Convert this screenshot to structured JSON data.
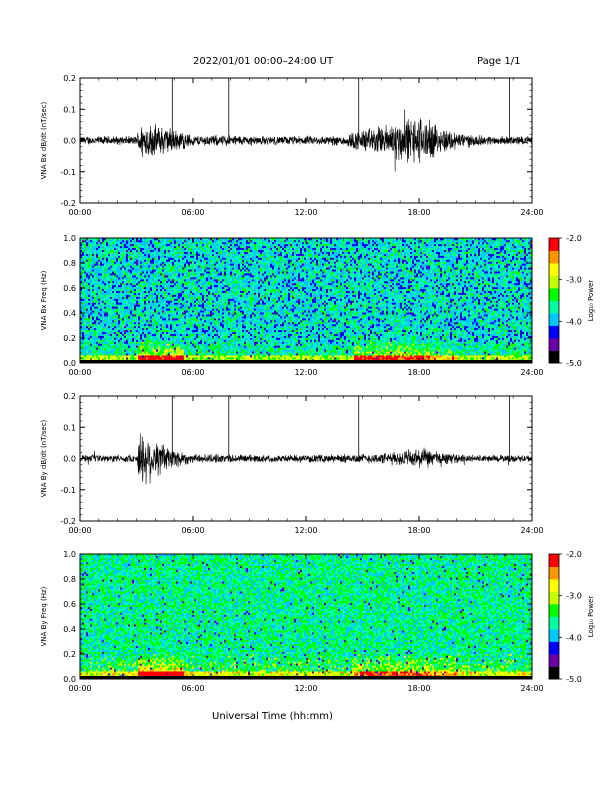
{
  "header": {
    "title": "2022/01/01  00:00–24:00 UT",
    "page_label": "Page 1/1"
  },
  "xaxis": {
    "label": "Universal Time (hh:mm)",
    "ticks": [
      "00:00",
      "06:00",
      "12:00",
      "18:00",
      "24:00"
    ]
  },
  "chart_data": [
    {
      "type": "line",
      "ylabel": "VNA Bx dB/dt (nT/sec)",
      "xlim": [
        0,
        24
      ],
      "ylim": [
        -0.2,
        0.2
      ],
      "yticks": [
        "0.2",
        "0.1",
        "0.0",
        "-0.1",
        "-0.2"
      ],
      "spike_times_h": [
        4.9,
        7.9,
        14.8,
        22.8
      ],
      "noise_envelope": {
        "x": [
          0,
          3,
          3.2,
          4.5,
          5.5,
          6,
          8,
          10,
          12,
          14,
          14.8,
          16,
          17,
          18,
          19,
          20,
          21,
          22,
          23,
          24
        ],
        "amplitude": [
          0.012,
          0.012,
          0.05,
          0.04,
          0.025,
          0.015,
          0.015,
          0.012,
          0.012,
          0.015,
          0.03,
          0.04,
          0.06,
          0.07,
          0.04,
          0.025,
          0.015,
          0.012,
          0.012,
          0.012
        ]
      }
    },
    {
      "type": "heatmap",
      "ylabel": "VNA Bx Freq (Hz)",
      "colorbar_label": "Log₁₀ Power",
      "colorbar_ticks": [
        "-2.0",
        "-3.0",
        "-4.0",
        "-5.0"
      ],
      "zlim": [
        -5.0,
        -2.0
      ],
      "ylim": [
        0.0,
        1.0
      ],
      "yticks": [
        "1.0",
        "0.8",
        "0.6",
        "0.4",
        "0.2",
        "0.0"
      ],
      "colormap": [
        "#000000",
        "#6a00a8",
        "#0000ff",
        "#00c8ff",
        "#00ffa0",
        "#00ff00",
        "#c8ff00",
        "#ffff00",
        "#ff9600",
        "#ff0000"
      ]
    },
    {
      "type": "line",
      "ylabel": "VNA By dB/dt (nT/sec)",
      "xlim": [
        0,
        24
      ],
      "ylim": [
        -0.2,
        0.2
      ],
      "yticks": [
        "0.2",
        "0.1",
        "0.0",
        "-0.1",
        "-0.2"
      ],
      "spike_times_h": [
        4.9,
        7.9,
        14.8,
        22.8
      ],
      "noise_envelope": {
        "x": [
          0,
          3,
          3.2,
          4.5,
          5.5,
          6,
          8,
          10,
          12,
          14,
          16,
          17,
          18,
          19,
          20,
          21,
          22,
          23,
          24
        ],
        "amplitude": [
          0.01,
          0.01,
          0.08,
          0.04,
          0.02,
          0.012,
          0.012,
          0.01,
          0.01,
          0.012,
          0.015,
          0.02,
          0.03,
          0.02,
          0.012,
          0.01,
          0.01,
          0.01,
          0.01
        ]
      }
    },
    {
      "type": "heatmap",
      "ylabel": "VNA By Freq (Hz)",
      "colorbar_label": "Log₁₀ Power",
      "colorbar_ticks": [
        "-2.0",
        "-3.0",
        "-4.0",
        "-5.0"
      ],
      "zlim": [
        -5.0,
        -2.0
      ],
      "ylim": [
        0.0,
        1.0
      ],
      "yticks": [
        "1.0",
        "0.8",
        "0.6",
        "0.4",
        "0.2",
        "0.0"
      ],
      "colormap": [
        "#000000",
        "#6a00a8",
        "#0000ff",
        "#00c8ff",
        "#00ffa0",
        "#00ff00",
        "#c8ff00",
        "#ffff00",
        "#ff9600",
        "#ff0000"
      ]
    }
  ]
}
